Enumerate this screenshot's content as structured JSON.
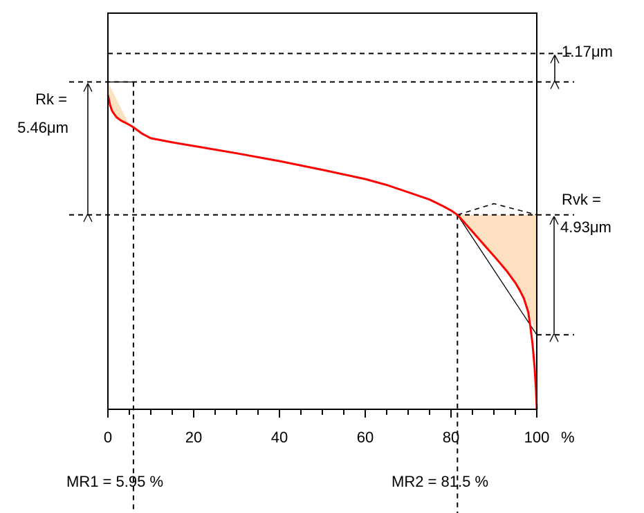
{
  "chart_data": {
    "type": "line",
    "title": "",
    "xlabel": "",
    "ylabel": "",
    "x_unit": "%",
    "xlim": [
      0,
      100
    ],
    "x_ticks": [
      0,
      20,
      40,
      60,
      80,
      100
    ],
    "grid": false,
    "series": [
      {
        "name": "",
        "color": "#ff0000",
        "x": [
          0,
          0.5,
          1,
          2,
          3,
          4,
          5,
          6,
          8,
          10,
          15,
          20,
          30,
          40,
          50,
          60,
          65,
          70,
          75,
          78,
          80,
          81.5,
          83,
          85,
          87,
          89,
          91,
          93,
          95,
          96,
          97,
          98,
          98.5,
          99,
          99.5,
          99.8,
          100
        ],
        "y": [
          9.22,
          8.8,
          8.55,
          8.3,
          8.17,
          8.08,
          7.99,
          7.88,
          7.62,
          7.44,
          7.27,
          7.12,
          6.82,
          6.5,
          6.14,
          5.76,
          5.52,
          5.22,
          4.92,
          4.66,
          4.47,
          4.29,
          4.0,
          3.6,
          3.2,
          2.8,
          2.4,
          1.98,
          1.5,
          1.2,
          0.85,
          0.3,
          -0.3,
          -1.0,
          -2.0,
          -2.9,
          -3.7
        ]
      }
    ],
    "rk_line": {
      "x": [
        0,
        100
      ],
      "y": [
        9.8,
        4.29
      ]
    },
    "rvk_line": {
      "x": [
        81.5,
        100
      ],
      "y": [
        4.29,
        -0.64
      ]
    },
    "levels": {
      "rpk_top": 10.92,
      "rk_top": 9.75,
      "rk_bottom": 4.29,
      "rvk_bottom": -0.64
    },
    "annotations": {
      "rpk": "1.17μm",
      "rk_label": "Rk =",
      "rk_value": "5.46μm",
      "rvk_label": "Rvk =",
      "rvk_value": "4.93μm",
      "x_unit_label": "%",
      "mr1_text": "MR1 = 5.95  %",
      "mr2_text": "MR2 = 81.5  %"
    },
    "mr1": 5.95,
    "mr2": 81.5,
    "colors": {
      "curve": "#ff0000",
      "fill": "#fce0c0",
      "line": "#000000"
    }
  }
}
